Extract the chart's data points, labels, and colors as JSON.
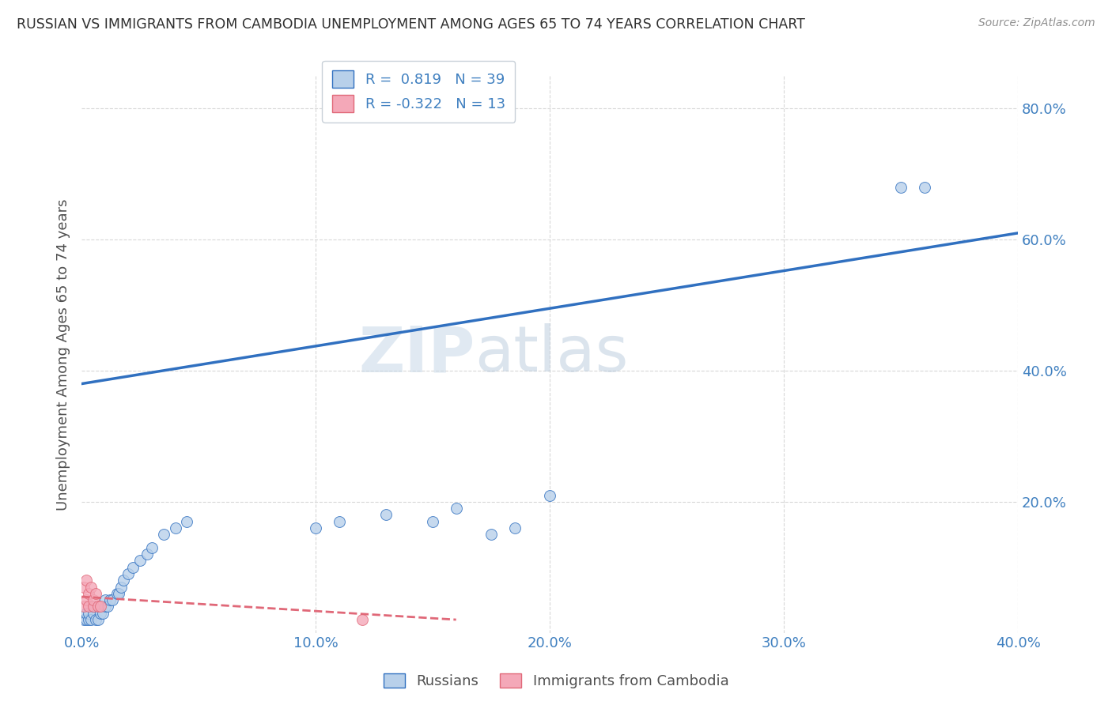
{
  "title": "RUSSIAN VS IMMIGRANTS FROM CAMBODIA UNEMPLOYMENT AMONG AGES 65 TO 74 YEARS CORRELATION CHART",
  "source": "Source: ZipAtlas.com",
  "ylabel": "Unemployment Among Ages 65 to 74 years",
  "xmin": 0.0,
  "xmax": 0.4,
  "ymin": 0.0,
  "ymax": 0.85,
  "xticks": [
    0.0,
    0.1,
    0.2,
    0.3,
    0.4
  ],
  "xtick_labels": [
    "0.0%",
    "10.0%",
    "20.0%",
    "30.0%",
    "40.0%"
  ],
  "yticks": [
    0.0,
    0.2,
    0.4,
    0.6,
    0.8
  ],
  "ytick_labels": [
    "",
    "20.0%",
    "40.0%",
    "60.0%",
    "80.0%"
  ],
  "r_russian": 0.819,
  "n_russian": 39,
  "r_cambodia": -0.322,
  "n_cambodia": 13,
  "russian_color": "#b8d0ea",
  "cambodia_color": "#f4a8b8",
  "russian_line_color": "#3070c0",
  "cambodia_line_color": "#e06878",
  "watermark_zip": "ZIP",
  "watermark_atlas": "atlas",
  "russian_x": [
    0.001,
    0.002,
    0.002,
    0.003,
    0.003,
    0.004,
    0.005,
    0.005,
    0.006,
    0.007,
    0.008,
    0.009,
    0.01,
    0.01,
    0.011,
    0.012,
    0.013,
    0.015,
    0.016,
    0.017,
    0.018,
    0.02,
    0.022,
    0.025,
    0.028,
    0.03,
    0.035,
    0.04,
    0.045,
    0.1,
    0.11,
    0.13,
    0.15,
    0.16,
    0.175,
    0.185,
    0.2,
    0.35,
    0.36
  ],
  "russian_y": [
    0.02,
    0.02,
    0.03,
    0.02,
    0.03,
    0.02,
    0.03,
    0.04,
    0.02,
    0.02,
    0.03,
    0.03,
    0.04,
    0.05,
    0.04,
    0.05,
    0.05,
    0.06,
    0.06,
    0.07,
    0.08,
    0.09,
    0.1,
    0.11,
    0.12,
    0.13,
    0.15,
    0.16,
    0.17,
    0.16,
    0.17,
    0.18,
    0.17,
    0.19,
    0.15,
    0.16,
    0.21,
    0.68,
    0.68
  ],
  "cambodia_x": [
    0.001,
    0.001,
    0.002,
    0.002,
    0.003,
    0.003,
    0.004,
    0.005,
    0.005,
    0.006,
    0.007,
    0.008,
    0.12
  ],
  "cambodia_y": [
    0.04,
    0.07,
    0.05,
    0.08,
    0.04,
    0.06,
    0.07,
    0.04,
    0.05,
    0.06,
    0.04,
    0.04,
    0.02
  ],
  "russian_line_x0": 0.0,
  "russian_line_y0": 0.38,
  "russian_line_x1": 0.4,
  "russian_line_y1": 0.61,
  "cambodia_line_x0": 0.0,
  "cambodia_line_y0": 0.055,
  "cambodia_line_x1": 0.16,
  "cambodia_line_y1": 0.02
}
